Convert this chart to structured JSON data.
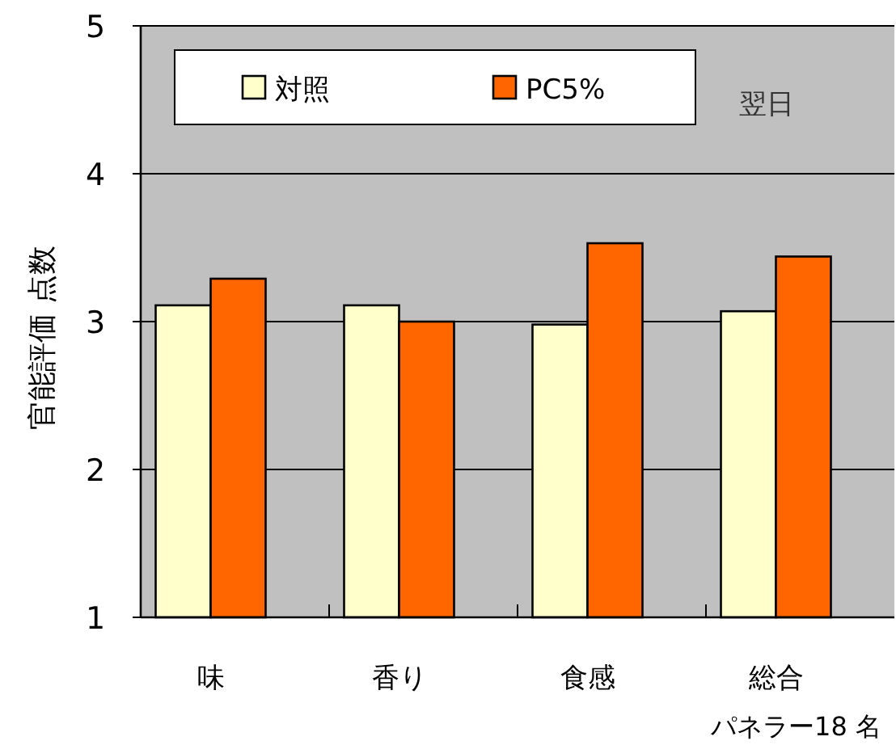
{
  "chart_data": {
    "type": "bar",
    "ylabel": "官能評価 点数",
    "categories": [
      "味",
      "香り",
      "食感",
      "総合"
    ],
    "series": [
      {
        "name": "対照",
        "color": "#ffffcc",
        "values": [
          3.11,
          3.11,
          2.98,
          3.07
        ]
      },
      {
        "name": "PC5%",
        "color": "#ff6600",
        "values": [
          3.29,
          3.0,
          3.53,
          3.44
        ]
      }
    ],
    "ylim": [
      1,
      5
    ],
    "yticks": [
      1,
      2,
      3,
      4,
      5
    ],
    "grid": "y",
    "legend": "top",
    "annotations": [
      "翌日",
      "パネラー18 名"
    ]
  }
}
